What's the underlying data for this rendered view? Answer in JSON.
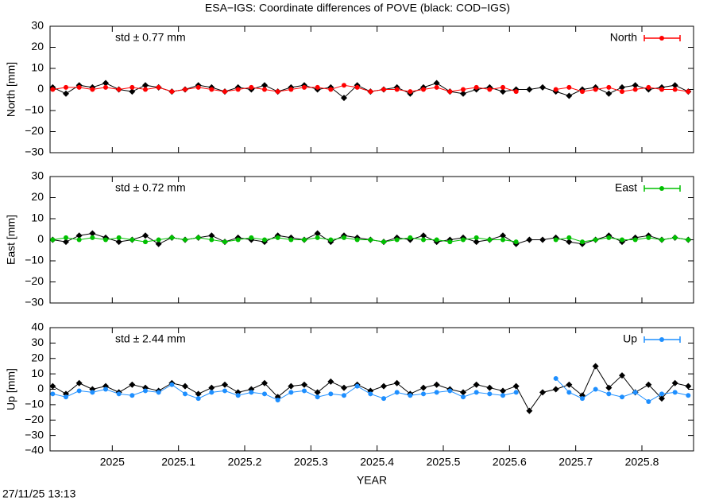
{
  "title": "ESA−IGS: Coordinate differences of POVE (black: COD−IGS)",
  "timestamp": "27/11/25 13:13",
  "chart_data": [
    {
      "type": "line",
      "ylabel": "North [mm]",
      "annotation": "std ± 0.77 mm",
      "xlim": [
        2024.906,
        2025.878
      ],
      "xticks": [
        2025,
        2025.1,
        2025.2,
        2025.3,
        2025.4,
        2025.5,
        2025.6,
        2025.7,
        2025.8
      ],
      "xtick_labels": false,
      "ylim": [
        -30,
        30
      ],
      "yticks": [
        {
          "value": -30,
          "label": "−30"
        },
        {
          "value": -20,
          "label": "−20"
        },
        {
          "value": -10,
          "label": "−10"
        },
        0,
        10,
        20,
        30
      ],
      "x": [
        2024.91,
        2024.93,
        2024.95,
        2024.97,
        2024.99,
        2025.01,
        2025.03,
        2025.05,
        2025.07,
        2025.09,
        2025.11,
        2025.13,
        2025.15,
        2025.17,
        2025.19,
        2025.21,
        2025.23,
        2025.25,
        2025.27,
        2025.29,
        2025.31,
        2025.33,
        2025.35,
        2025.37,
        2025.39,
        2025.41,
        2025.43,
        2025.45,
        2025.47,
        2025.49,
        2025.51,
        2025.53,
        2025.55,
        2025.57,
        2025.59,
        2025.61,
        2025.63,
        2025.65,
        2025.67,
        2025.69,
        2025.71,
        2025.73,
        2025.75,
        2025.77,
        2025.79,
        2025.81,
        2025.83,
        2025.85,
        2025.87
      ],
      "series": [
        {
          "color": "#000000",
          "values": [
            1,
            -2,
            2,
            1,
            3,
            0,
            -1,
            2,
            1,
            -1,
            0,
            2,
            1,
            -1,
            1,
            0,
            2,
            -1,
            1,
            2,
            0,
            1,
            -4,
            2,
            -1,
            0,
            1,
            -2,
            1,
            3,
            -1,
            -2,
            0,
            1,
            -1,
            0,
            0,
            1,
            -1,
            -3,
            0,
            1,
            -2,
            1,
            2,
            0,
            1,
            2,
            -1
          ]
        },
        {
          "name": "North",
          "color": "#ff0000",
          "values": [
            0,
            1,
            1,
            0,
            1,
            0,
            1,
            0,
            1,
            -1,
            0,
            1,
            0,
            -1,
            0,
            1,
            0,
            -1,
            0,
            1,
            1,
            0,
            2,
            1,
            -1,
            0,
            0,
            -1,
            0,
            1,
            -1,
            0,
            1,
            0,
            1,
            -1,
            null,
            null,
            0,
            1,
            -1,
            0,
            1,
            -1,
            0,
            1,
            0,
            0,
            -1
          ]
        }
      ]
    },
    {
      "type": "line",
      "ylabel": "East [mm]",
      "annotation": "std ± 0.72 mm",
      "xlim": [
        2024.906,
        2025.878
      ],
      "xticks": [
        2025,
        2025.1,
        2025.2,
        2025.3,
        2025.4,
        2025.5,
        2025.6,
        2025.7,
        2025.8
      ],
      "xtick_labels": false,
      "ylim": [
        -30,
        30
      ],
      "yticks": [
        {
          "value": -30,
          "label": "−30"
        },
        {
          "value": -20,
          "label": "−20"
        },
        {
          "value": -10,
          "label": "−10"
        },
        0,
        10,
        20,
        30
      ],
      "x": [
        2024.91,
        2024.93,
        2024.95,
        2024.97,
        2024.99,
        2025.01,
        2025.03,
        2025.05,
        2025.07,
        2025.09,
        2025.11,
        2025.13,
        2025.15,
        2025.17,
        2025.19,
        2025.21,
        2025.23,
        2025.25,
        2025.27,
        2025.29,
        2025.31,
        2025.33,
        2025.35,
        2025.37,
        2025.39,
        2025.41,
        2025.43,
        2025.45,
        2025.47,
        2025.49,
        2025.51,
        2025.53,
        2025.55,
        2025.57,
        2025.59,
        2025.61,
        2025.63,
        2025.65,
        2025.67,
        2025.69,
        2025.71,
        2025.73,
        2025.75,
        2025.77,
        2025.79,
        2025.81,
        2025.83,
        2025.85,
        2025.87
      ],
      "series": [
        {
          "color": "#000000",
          "values": [
            0,
            -1,
            2,
            3,
            1,
            -1,
            0,
            2,
            -2,
            1,
            0,
            1,
            2,
            -1,
            1,
            0,
            -1,
            2,
            1,
            0,
            3,
            -1,
            2,
            1,
            0,
            -1,
            1,
            0,
            2,
            -1,
            0,
            1,
            -1,
            0,
            2,
            -2,
            0,
            0,
            1,
            -1,
            -2,
            0,
            2,
            -1,
            1,
            2,
            0,
            1,
            0
          ]
        },
        {
          "name": "East",
          "color": "#00c000",
          "values": [
            0,
            1,
            0,
            1,
            0,
            1,
            0,
            -1,
            0,
            1,
            0,
            1,
            0,
            -1,
            0,
            1,
            0,
            1,
            0,
            0,
            1,
            0,
            1,
            0,
            0,
            -1,
            0,
            1,
            0,
            0,
            -1,
            0,
            1,
            0,
            0,
            -1,
            null,
            null,
            0,
            1,
            -1,
            0,
            1,
            0,
            0,
            1,
            0,
            1,
            0
          ]
        }
      ]
    },
    {
      "type": "line",
      "ylabel": "Up [mm]",
      "annotation": "std ± 2.44 mm",
      "xlabel": "YEAR",
      "xlim": [
        2024.906,
        2025.878
      ],
      "xticks": [
        2025,
        2025.1,
        2025.2,
        2025.3,
        2025.4,
        2025.5,
        2025.6,
        2025.7,
        2025.8
      ],
      "xtick_labels": true,
      "ylim": [
        -40,
        40
      ],
      "yticks": [
        {
          "value": -40,
          "label": "−40"
        },
        {
          "value": -30,
          "label": "−30"
        },
        {
          "value": -20,
          "label": "−20"
        },
        {
          "value": -10,
          "label": "−10"
        },
        0,
        10,
        20,
        30,
        40
      ],
      "x": [
        2024.91,
        2024.93,
        2024.95,
        2024.97,
        2024.99,
        2025.01,
        2025.03,
        2025.05,
        2025.07,
        2025.09,
        2025.11,
        2025.13,
        2025.15,
        2025.17,
        2025.19,
        2025.21,
        2025.23,
        2025.25,
        2025.27,
        2025.29,
        2025.31,
        2025.33,
        2025.35,
        2025.37,
        2025.39,
        2025.41,
        2025.43,
        2025.45,
        2025.47,
        2025.49,
        2025.51,
        2025.53,
        2025.55,
        2025.57,
        2025.59,
        2025.61,
        2025.63,
        2025.65,
        2025.67,
        2025.69,
        2025.71,
        2025.73,
        2025.75,
        2025.77,
        2025.79,
        2025.81,
        2025.83,
        2025.85,
        2025.87
      ],
      "series": [
        {
          "color": "#000000",
          "values": [
            2,
            -3,
            4,
            0,
            2,
            -2,
            3,
            1,
            -1,
            4,
            2,
            -3,
            1,
            3,
            -2,
            0,
            4,
            -5,
            2,
            3,
            -2,
            5,
            1,
            3,
            -1,
            2,
            4,
            -3,
            1,
            3,
            0,
            -2,
            3,
            1,
            -1,
            2,
            -14,
            -2,
            0,
            3,
            -4,
            15,
            1,
            9,
            -2,
            3,
            -6,
            4,
            2
          ]
        },
        {
          "name": "Up",
          "color": "#1e8fff",
          "values": [
            -3,
            -5,
            -1,
            -2,
            0,
            -3,
            -4,
            -1,
            -2,
            3,
            -3,
            -6,
            -2,
            -1,
            -4,
            -2,
            -3,
            -7,
            -2,
            -1,
            -5,
            -3,
            -4,
            2,
            -3,
            -6,
            -2,
            -4,
            -3,
            -2,
            -1,
            -5,
            -2,
            -3,
            -4,
            -2,
            null,
            null,
            7,
            -2,
            -6,
            0,
            -3,
            -5,
            -2,
            -8,
            -3,
            -2,
            -4
          ]
        }
      ]
    }
  ]
}
